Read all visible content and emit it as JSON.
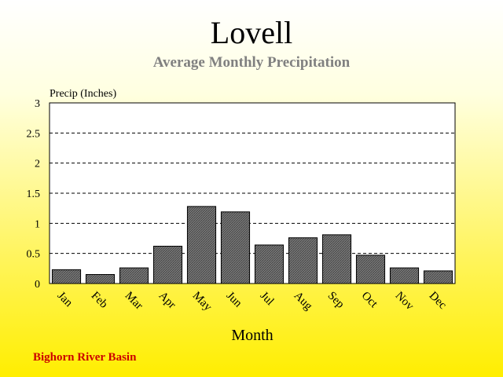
{
  "colors": {
    "plot_background": "#ffffff",
    "bar_fill": "#6e6e6e",
    "bar_stroke": "#000000",
    "subtitle": "#808080",
    "footer": "#cc0000"
  },
  "footer": "Bighorn River Basin",
  "chart_data": {
    "type": "bar",
    "title": "Lovell",
    "subtitle": "Average Monthly Precipitation",
    "xlabel": "Month",
    "ylabel": "Precip (Inches)",
    "ylim": [
      0,
      3
    ],
    "yticks": [
      "0",
      "0.5",
      "1",
      "1.5",
      "2",
      "2.5",
      "3"
    ],
    "grid": "horizontal dashed",
    "categories": [
      "Jan",
      "Feb",
      "Mar",
      "Apr",
      "May",
      "Jun",
      "Jul",
      "Aug",
      "Sep",
      "Oct",
      "Nov",
      "Dec"
    ],
    "values": [
      0.23,
      0.15,
      0.26,
      0.62,
      1.28,
      1.19,
      0.64,
      0.76,
      0.81,
      0.47,
      0.26,
      0.21
    ]
  }
}
